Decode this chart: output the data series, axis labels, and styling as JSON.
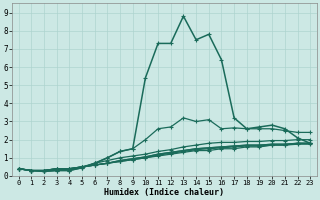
{
  "xlabel": "Humidex (Indice chaleur)",
  "xlim": [
    -0.5,
    23.5
  ],
  "ylim": [
    0,
    9.5
  ],
  "xticks": [
    0,
    1,
    2,
    3,
    4,
    5,
    6,
    7,
    8,
    9,
    10,
    11,
    12,
    13,
    14,
    15,
    16,
    17,
    18,
    19,
    20,
    21,
    22,
    23
  ],
  "yticks": [
    0,
    1,
    2,
    3,
    4,
    5,
    6,
    7,
    8,
    9
  ],
  "bg_color": "#cce8e4",
  "grid_color": "#aed4cf",
  "line_color": "#1a6b5a",
  "curves": [
    [
      0.4,
      0.3,
      0.3,
      0.4,
      0.4,
      0.5,
      0.6,
      0.7,
      0.8,
      0.9,
      1.0,
      1.1,
      1.2,
      1.3,
      1.4,
      1.4,
      1.5,
      1.5,
      1.6,
      1.6,
      1.7,
      1.7,
      1.8,
      1.8
    ],
    [
      0.4,
      0.3,
      0.3,
      0.4,
      0.4,
      0.5,
      0.6,
      0.7,
      0.8,
      0.9,
      1.0,
      1.15,
      1.25,
      1.35,
      1.45,
      1.5,
      1.55,
      1.6,
      1.65,
      1.65,
      1.7,
      1.7,
      1.75,
      1.75
    ],
    [
      0.4,
      0.3,
      0.3,
      0.4,
      0.4,
      0.5,
      0.6,
      0.7,
      0.85,
      0.95,
      1.05,
      1.2,
      1.3,
      1.4,
      1.5,
      1.55,
      1.6,
      1.65,
      1.7,
      1.7,
      1.75,
      1.75,
      1.8,
      1.8
    ],
    [
      0.4,
      0.3,
      0.3,
      0.4,
      0.4,
      0.5,
      0.6,
      0.7,
      0.85,
      0.95,
      1.05,
      1.2,
      1.3,
      1.4,
      1.5,
      1.55,
      1.6,
      1.65,
      1.7,
      1.7,
      1.75,
      1.75,
      1.8,
      1.8
    ],
    [
      0.4,
      0.3,
      0.3,
      0.35,
      0.35,
      0.5,
      0.7,
      0.85,
      1.0,
      1.1,
      1.2,
      1.35,
      1.45,
      1.6,
      1.7,
      1.8,
      1.85,
      1.85,
      1.9,
      1.9,
      1.95,
      1.95,
      2.0,
      2.0
    ],
    [
      0.4,
      0.3,
      0.25,
      0.3,
      0.3,
      0.45,
      0.7,
      1.0,
      1.35,
      1.5,
      2.0,
      2.6,
      2.7,
      3.2,
      3.0,
      3.1,
      2.6,
      2.65,
      2.6,
      2.6,
      2.6,
      2.5,
      2.4,
      2.4
    ],
    [
      0.4,
      0.3,
      0.25,
      0.3,
      0.3,
      0.45,
      0.7,
      1.0,
      1.35,
      1.5,
      5.4,
      7.3,
      7.3,
      8.8,
      7.5,
      7.8,
      6.4,
      3.2,
      2.6,
      2.7,
      2.8,
      2.6,
      2.1,
      1.8
    ]
  ],
  "markers": [
    "+",
    "+",
    "+",
    "+",
    "+",
    "+",
    "+"
  ]
}
